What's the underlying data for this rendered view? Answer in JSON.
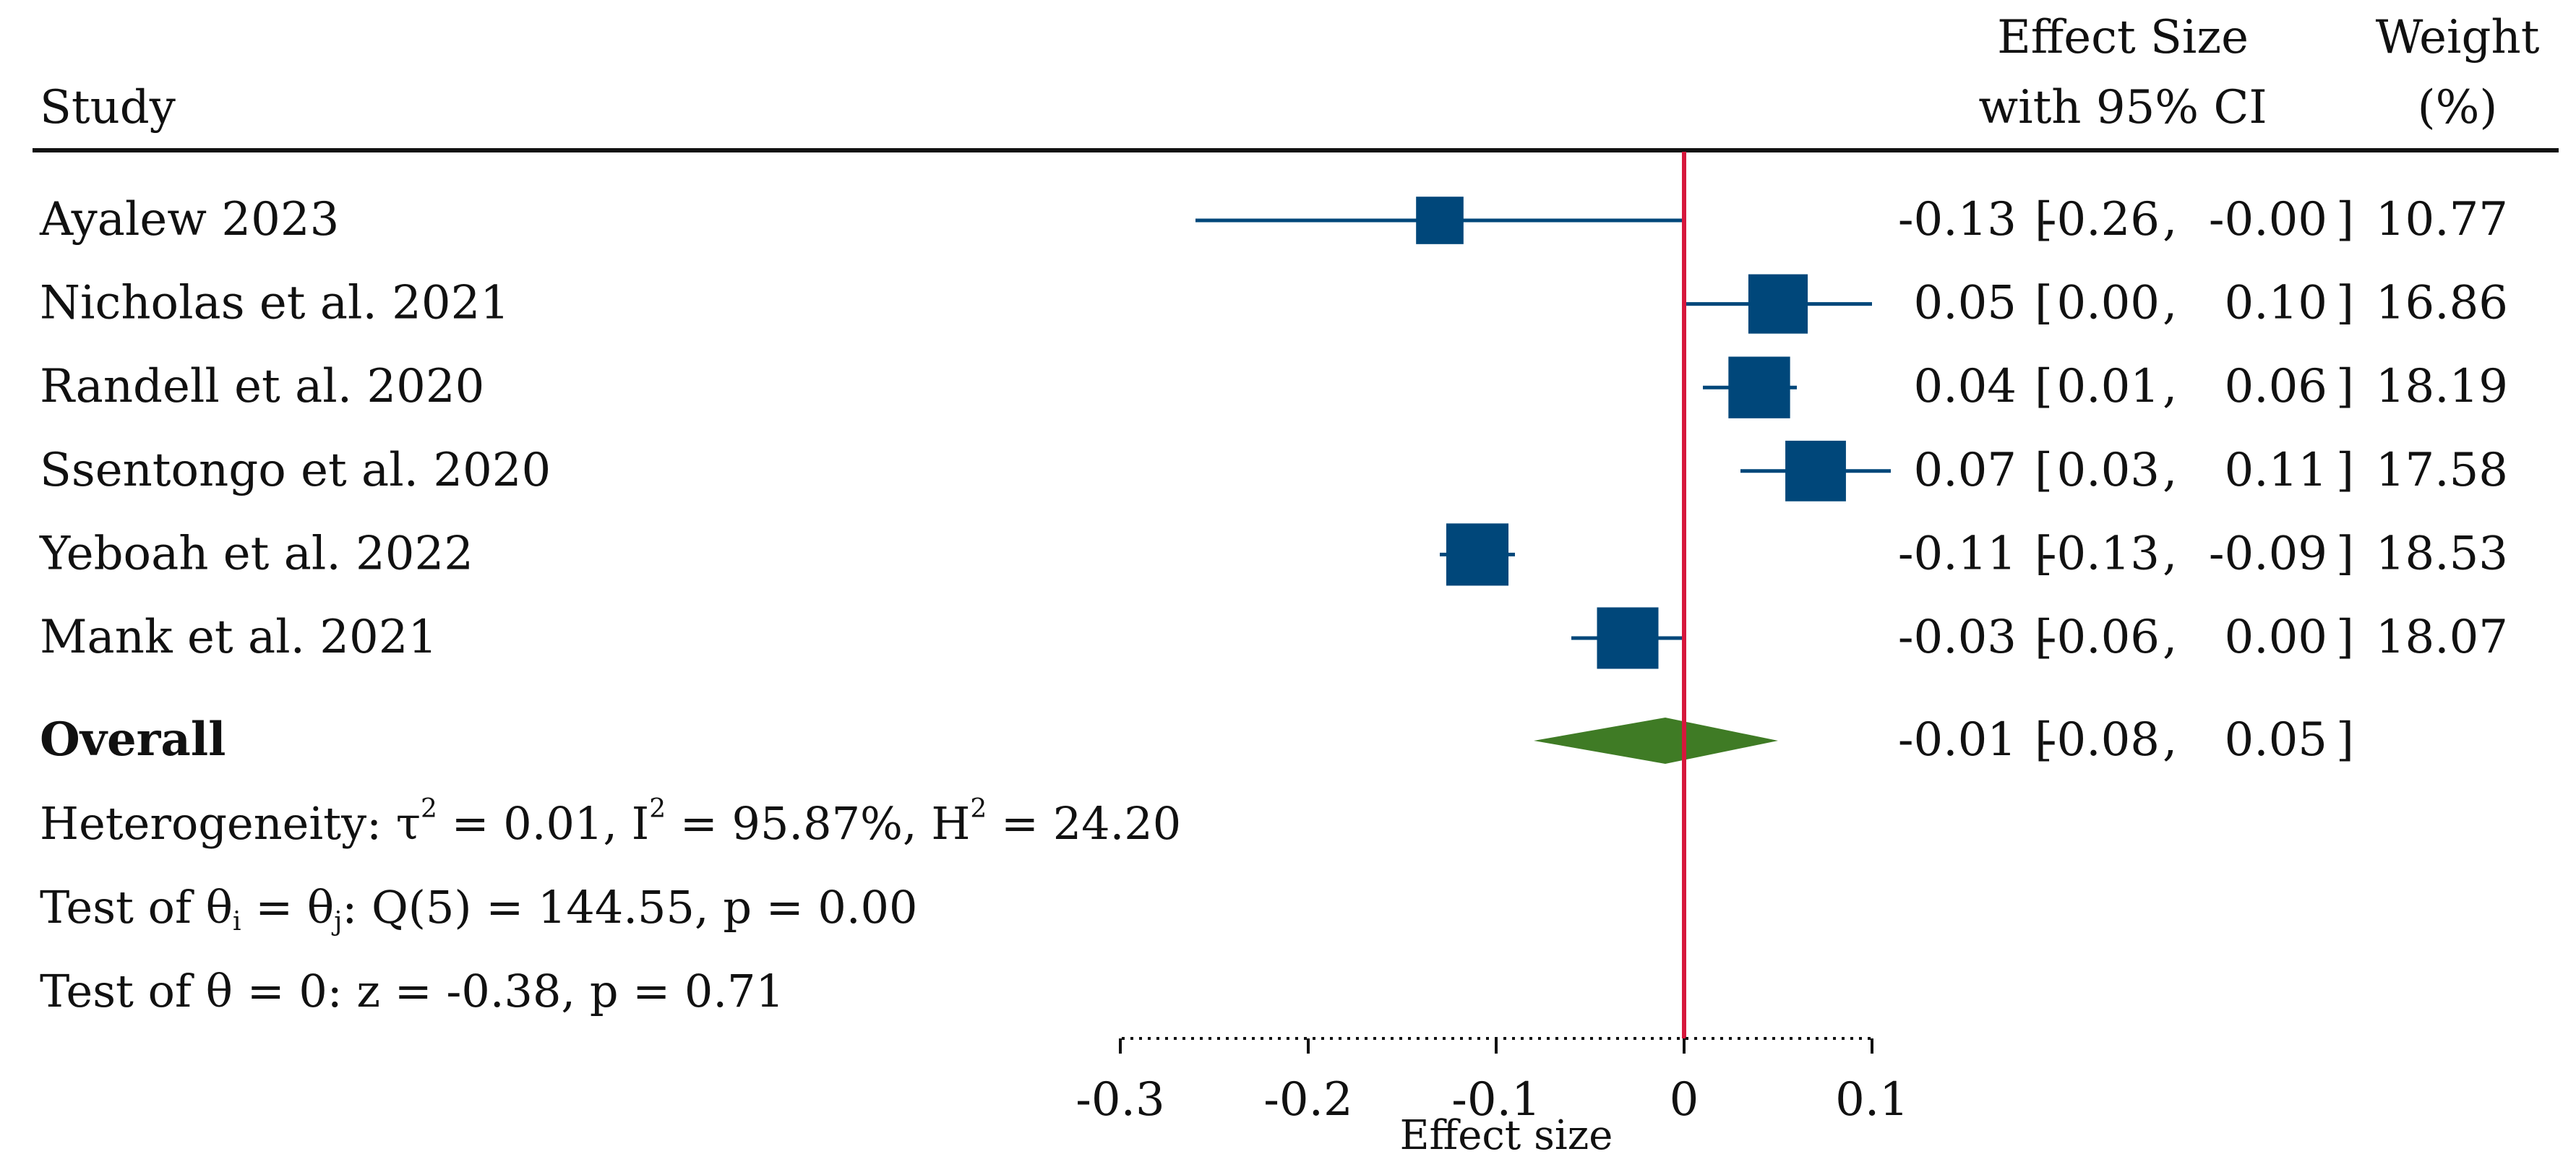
{
  "colors": {
    "marker": "#00477A",
    "diamond": "#3F7B25",
    "ref_line": "#D6173C",
    "text": "#111111",
    "header_rule": "#111111",
    "axis": "#111111"
  },
  "headers": {
    "study": "Study",
    "effect_line1": "Effect Size",
    "effect_line2": "with 95% CI",
    "weight_line1": "Weight",
    "weight_line2": "(%)"
  },
  "chart_data": {
    "type": "forest",
    "title": "",
    "xlabel": "Effect size",
    "xlim": [
      -0.3,
      0.1
    ],
    "ticks": [
      -0.3,
      -0.2,
      -0.1,
      0,
      0.1
    ],
    "tick_labels": [
      "-0.3",
      "-0.2",
      "-0.1",
      "0",
      "0.1"
    ],
    "reference_line": 0,
    "studies": [
      {
        "label": "Ayalew 2023",
        "es": -0.13,
        "ci_low": -0.26,
        "ci_high": -0.0,
        "weight": 10.77,
        "es_text": "-0.13",
        "low_text": "-0.26",
        "high_text": "-0.00",
        "weight_text": "10.77"
      },
      {
        "label": "Nicholas et al. 2021",
        "es": 0.05,
        "ci_low": 0.0,
        "ci_high": 0.1,
        "weight": 16.86,
        "es_text": "0.05",
        "low_text": "0.00",
        "high_text": "0.10",
        "weight_text": "16.86"
      },
      {
        "label": "Randell et al. 2020",
        "es": 0.04,
        "ci_low": 0.01,
        "ci_high": 0.06,
        "weight": 18.19,
        "es_text": "0.04",
        "low_text": "0.01",
        "high_text": "0.06",
        "weight_text": "18.19"
      },
      {
        "label": "Ssentongo et al. 2020",
        "es": 0.07,
        "ci_low": 0.03,
        "ci_high": 0.11,
        "weight": 17.58,
        "es_text": "0.07",
        "low_text": "0.03",
        "high_text": "0.11",
        "weight_text": "17.58"
      },
      {
        "label": "Yeboah et al. 2022",
        "es": -0.11,
        "ci_low": -0.13,
        "ci_high": -0.09,
        "weight": 18.53,
        "es_text": "-0.11",
        "low_text": "-0.13",
        "high_text": "-0.09",
        "weight_text": "18.53"
      },
      {
        "label": "Mank et al. 2021",
        "es": -0.03,
        "ci_low": -0.06,
        "ci_high": 0.0,
        "weight": 18.07,
        "es_text": "-0.03",
        "low_text": "-0.06",
        "high_text": "0.00",
        "weight_text": "18.07"
      }
    ],
    "overall": {
      "label": "Overall",
      "es": -0.01,
      "ci_low": -0.08,
      "ci_high": 0.05,
      "es_text": "-0.01",
      "low_text": "-0.08",
      "high_text": "0.05"
    },
    "heterogeneity": {
      "prefix": "Heterogeneity: ",
      "tau_symbol": "τ",
      "tau_value": " = 0.01, ",
      "i_symbol": "I",
      "i_value": " = 95.87%, ",
      "h_symbol": "H",
      "h_value": " = 24.20",
      "exponent": "2"
    },
    "test_homogeneity": {
      "prefix": "Test of ",
      "theta": "θ",
      "sub_i": "i",
      "equals": " = ",
      "sub_j": "j",
      "rest": ": Q(5) = 144.55, p = 0.00"
    },
    "test_zero": "Test of θ = 0: z = -0.38, p = 0.71"
  }
}
